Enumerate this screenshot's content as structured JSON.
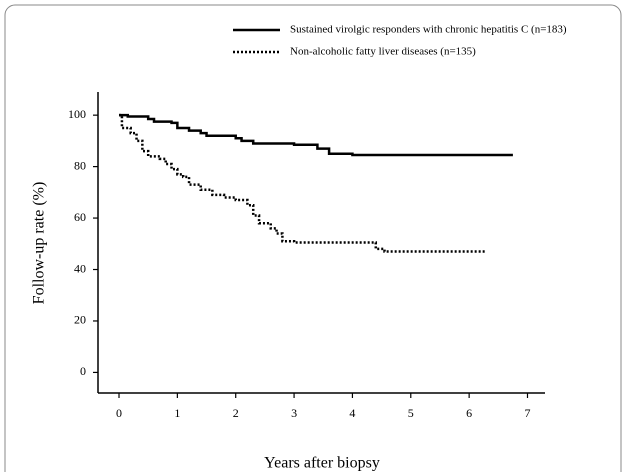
{
  "chart_data": {
    "type": "line",
    "step": "post",
    "xlabel": "Years after biopsy",
    "ylabel": "Follow-up rate (%)",
    "xlim": [
      -0.36,
      7.3
    ],
    "ylim": [
      -8,
      109
    ],
    "xticks": [
      0,
      1,
      2,
      3,
      4,
      5,
      6,
      7
    ],
    "yticks": [
      0,
      20,
      40,
      60,
      80,
      100
    ],
    "series": [
      {
        "name": "Sustained virolgic responders with chronic hepatitis C (n=183)",
        "color": "#000000",
        "linestyle": "solid",
        "x": [
          0,
          0.15,
          0.5,
          0.6,
          0.9,
          1.0,
          1.2,
          1.4,
          1.5,
          2.0,
          2.1,
          2.3,
          3.0,
          3.4,
          3.6,
          4.0,
          6.75
        ],
        "values": [
          100,
          99.5,
          98.5,
          97.5,
          97,
          95,
          94,
          93,
          92,
          91,
          90,
          89,
          88.5,
          87,
          85,
          84.5,
          84.5
        ]
      },
      {
        "name": "Non-alcoholic fatty liver diseases (n=135)",
        "color": "#000000",
        "linestyle": "dotted",
        "x": [
          0,
          0.05,
          0.2,
          0.3,
          0.4,
          0.5,
          0.7,
          0.8,
          0.9,
          1.0,
          1.1,
          1.2,
          1.4,
          1.6,
          1.8,
          2.0,
          2.2,
          2.3,
          2.4,
          2.6,
          2.7,
          2.8,
          3.0,
          4.3,
          4.4,
          4.55,
          6.3
        ],
        "values": [
          100,
          95,
          93,
          90,
          86,
          84,
          83,
          81,
          79,
          77,
          76,
          73,
          71,
          69,
          68,
          67,
          65,
          61,
          58,
          56,
          54,
          51,
          50.5,
          50.5,
          48,
          47,
          47
        ]
      }
    ]
  }
}
